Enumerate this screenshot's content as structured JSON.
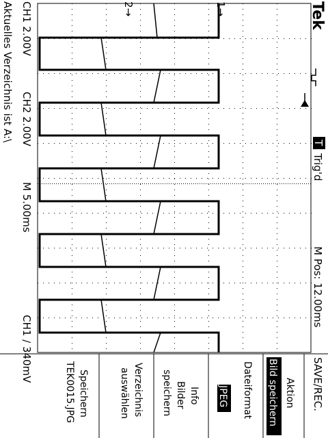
{
  "brand": "Tek",
  "trigger_status": {
    "badge": "T",
    "text": "Trig'd"
  },
  "ch1_scale": "CH1  2.00V",
  "ch2_scale": "CH2  2.00V",
  "timebase": "M 5.00ms",
  "position": "M Pos: 12.00ms",
  "trigger_readout": "CH1  ∕  340mV",
  "directory_message": "Aktuelles Verzeichnis ist A:\\",
  "markers": {
    "ch1": "1→",
    "ch2": "2→"
  },
  "menu": {
    "title": "SAVE/REC.",
    "action_label": "Aktion",
    "action_value": "Bild speichern",
    "format_label": "Dateiformat",
    "format_value": "JPEG",
    "info_line1": "Info",
    "info_line2": "Bilder",
    "info_line3": "speichern",
    "dir_line1": "Verzeichnis",
    "dir_line2": "auswählen",
    "save_line1": "Speichern",
    "save_line2": "TEK0015.JPG"
  }
}
